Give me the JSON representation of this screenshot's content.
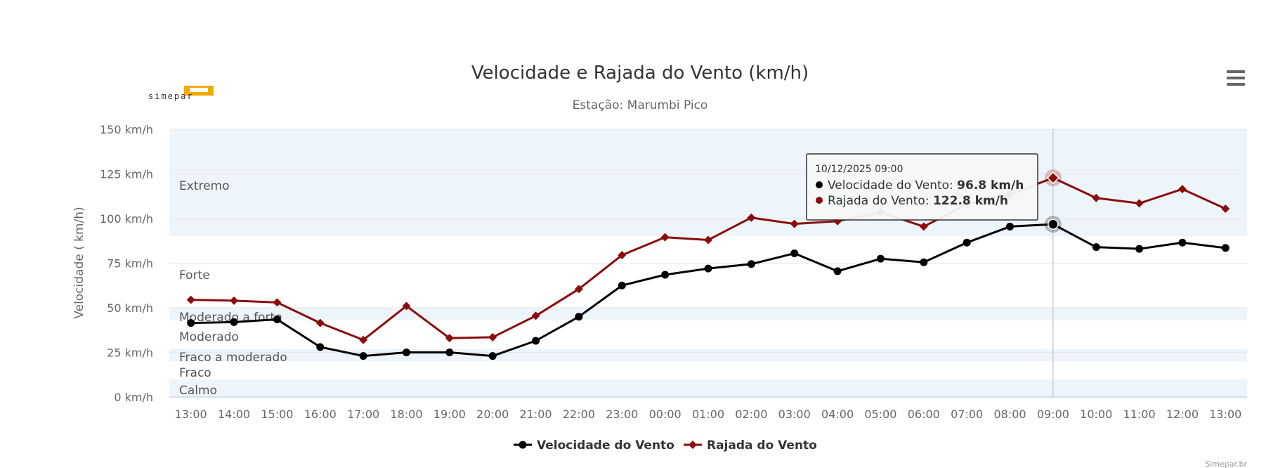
{
  "logo": {
    "text": "simepar"
  },
  "menu": {
    "icon": "hamburger-menu-icon"
  },
  "credits": "Simepar.br",
  "chart_data": {
    "type": "line",
    "title": "Velocidade e Rajada do Vento (km/h)",
    "subtitle": "Estação: Marumbi Pico",
    "ylabel": "Velocidade ( km/h)",
    "xlabel": "",
    "ylim": [
      0,
      150
    ],
    "yticks": [
      0,
      25,
      50,
      75,
      100,
      125,
      150
    ],
    "ytick_labels": [
      "0 km/h",
      "25 km/h",
      "50 km/h",
      "75 km/h",
      "100 km/h",
      "125 km/h",
      "150 km/h"
    ],
    "categories": [
      "13:00",
      "14:00",
      "15:00",
      "16:00",
      "17:00",
      "18:00",
      "19:00",
      "20:00",
      "21:00",
      "22:00",
      "23:00",
      "00:00",
      "01:00",
      "02:00",
      "03:00",
      "04:00",
      "05:00",
      "06:00",
      "07:00",
      "08:00",
      "09:00",
      "10:00",
      "11:00",
      "12:00",
      "13:00"
    ],
    "grid": true,
    "legend_position": "bottom-center",
    "bands": [
      {
        "label": "Calmo",
        "from": 0,
        "to": 10,
        "color": "#edf5fb"
      },
      {
        "label": "Fraco",
        "from": 10,
        "to": 20,
        "color": "#ffffff"
      },
      {
        "label": "Fraco a moderado",
        "from": 20,
        "to": 27,
        "color": "#edf5fb"
      },
      {
        "label": "Moderado",
        "from": 27,
        "to": 43,
        "color": "#ffffff"
      },
      {
        "label": "Moderado a forte",
        "from": 43,
        "to": 50,
        "color": "#edf5fb"
      },
      {
        "label": "Forte",
        "from": 50,
        "to": 90,
        "color": "#ffffff"
      },
      {
        "label": "Extremo",
        "from": 90,
        "to": 150,
        "color": "#edf5fb"
      }
    ],
    "series": [
      {
        "name": "Velocidade do Vento",
        "color": "#000000",
        "marker": "circle",
        "values": [
          41.5,
          42,
          43.5,
          28,
          23,
          25,
          25,
          23,
          31.5,
          45,
          62.5,
          68.5,
          72,
          74.5,
          80.5,
          70.5,
          77.5,
          75.5,
          86.5,
          95.5,
          96.8,
          84,
          83,
          86.5,
          83.5
        ]
      },
      {
        "name": "Rajada do Vento",
        "color": "#8b0d0d",
        "marker": "diamond",
        "values": [
          54.5,
          54,
          53,
          41.5,
          32,
          51,
          33,
          33.5,
          45.5,
          60.5,
          79.5,
          89.5,
          88,
          100.5,
          97,
          98.5,
          103.5,
          95.5,
          108,
          113.5,
          122.8,
          111.5,
          108.5,
          116.5,
          105.5
        ]
      }
    ],
    "tooltip": {
      "index": 20,
      "header": "10/12/2025 09:00",
      "rows": [
        {
          "label": "Velocidade do Vento: ",
          "value": "96.8 km/h",
          "color": "#000000"
        },
        {
          "label": "Rajada do Vento: ",
          "value": "122.8 km/h",
          "color": "#8b0d0d"
        }
      ]
    }
  }
}
